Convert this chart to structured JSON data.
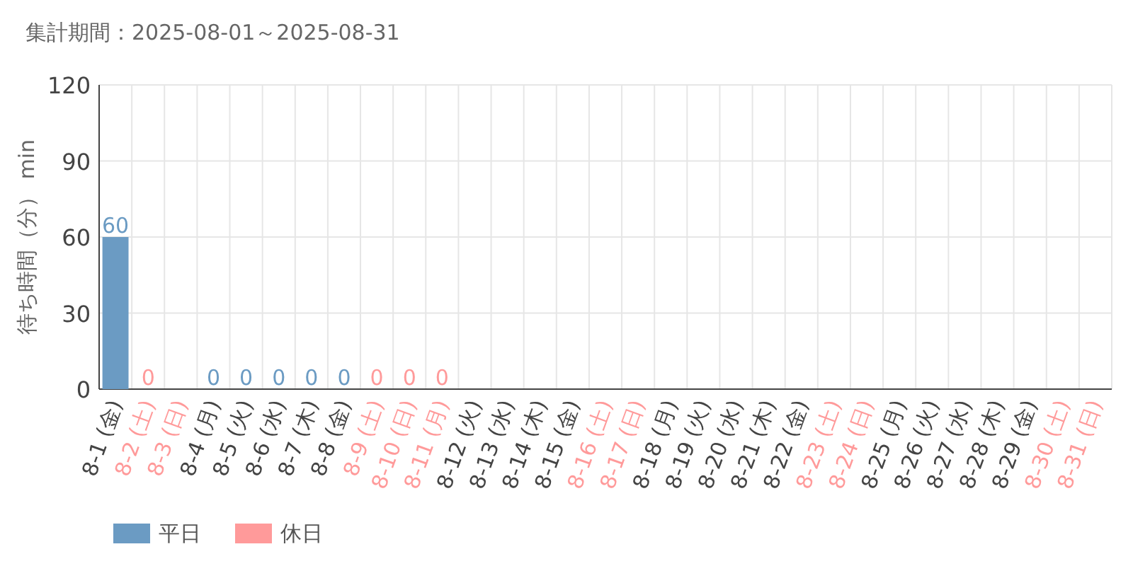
{
  "chart_data": {
    "type": "bar",
    "subtitle": "集計期間：2025-08-01～2025-08-31",
    "ylabel": "待ち時間（分） min",
    "categories": [
      "8-1 (金)",
      "8-2 (土)",
      "8-3 (日)",
      "8-4 (月)",
      "8-5 (火)",
      "8-6 (水)",
      "8-7 (木)",
      "8-8 (金)",
      "8-9 (土)",
      "8-10 (日)",
      "8-11 (月)",
      "8-12 (火)",
      "8-13 (水)",
      "8-14 (木)",
      "8-15 (金)",
      "8-16 (土)",
      "8-17 (日)",
      "8-18 (月)",
      "8-19 (火)",
      "8-20 (水)",
      "8-21 (木)",
      "8-22 (金)",
      "8-23 (土)",
      "8-24 (日)",
      "8-25 (月)",
      "8-26 (火)",
      "8-27 (水)",
      "8-28 (木)",
      "8-29 (金)",
      "8-30 (土)",
      "8-31 (日)"
    ],
    "colors": [
      "#6b9bc3",
      "#ff9a9a",
      "#ff9a9a",
      "#6b9bc3",
      "#6b9bc3",
      "#6b9bc3",
      "#6b9bc3",
      "#6b9bc3",
      "#ff9a9a",
      "#ff9a9a",
      "#ff9a9a",
      "#6b9bc3",
      "#6b9bc3",
      "#6b9bc3",
      "#6b9bc3",
      "#ff9a9a",
      "#ff9a9a",
      "#6b9bc3",
      "#6b9bc3",
      "#6b9bc3",
      "#6b9bc3",
      "#6b9bc3",
      "#ff9a9a",
      "#ff9a9a",
      "#6b9bc3",
      "#6b9bc3",
      "#6b9bc3",
      "#6b9bc3",
      "#6b9bc3",
      "#ff9a9a",
      "#ff9a9a"
    ],
    "series": [
      {
        "name": "平日",
        "color": "#6b9bc3",
        "values": [
          60,
          null,
          null,
          0,
          0,
          0,
          0,
          0,
          null,
          null,
          null,
          null,
          null,
          null,
          null,
          null,
          null,
          null,
          null,
          null,
          null,
          null,
          null,
          null,
          null,
          null,
          null,
          null,
          null,
          null,
          null
        ]
      },
      {
        "name": "休日",
        "color": "#ff9a9a",
        "values": [
          null,
          0,
          null,
          null,
          null,
          null,
          null,
          null,
          0,
          0,
          0,
          null,
          null,
          null,
          null,
          null,
          null,
          null,
          null,
          null,
          null,
          null,
          null,
          null,
          null,
          null,
          null,
          null,
          null,
          null,
          null
        ]
      }
    ],
    "ylim": [
      0,
      120
    ],
    "yticks": [
      0,
      30,
      60,
      90,
      120
    ],
    "grid": true,
    "data_labels": true,
    "legend": "bottom left"
  }
}
